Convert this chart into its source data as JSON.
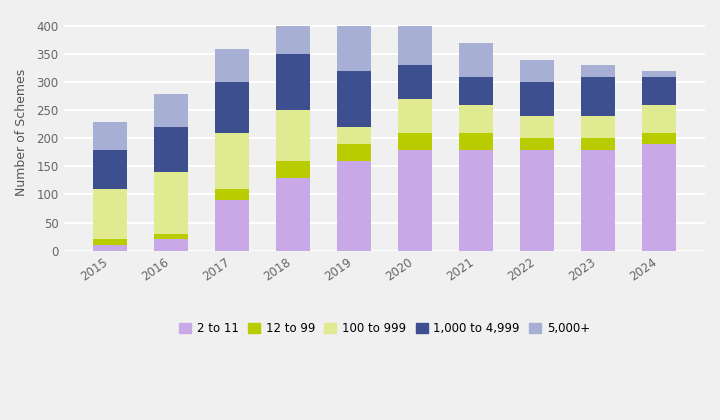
{
  "years": [
    "2015",
    "2016",
    "2017",
    "2018",
    "2019",
    "2020",
    "2021",
    "2022",
    "2023",
    "2024"
  ],
  "series": {
    "2 to 11": [
      10,
      20,
      90,
      130,
      160,
      180,
      180,
      180,
      180,
      190
    ],
    "12 to 99": [
      10,
      10,
      20,
      30,
      30,
      30,
      30,
      20,
      20,
      20
    ],
    "100 to 999": [
      90,
      110,
      100,
      90,
      30,
      60,
      50,
      40,
      40,
      50
    ],
    "1,000 to 4,999": [
      70,
      80,
      90,
      100,
      100,
      60,
      50,
      60,
      70,
      50
    ],
    "5,000+": [
      50,
      60,
      60,
      50,
      80,
      70,
      60,
      40,
      20,
      10
    ]
  },
  "colors": {
    "2 to 11": "#c9a8e8",
    "12 to 99": "#b8cc00",
    "100 to 999": "#e0ea90",
    "1,000 to 4,999": "#3d4f8f",
    "5,000+": "#a8afd4"
  },
  "ylabel": "Number of Schemes",
  "ylim": [
    0,
    420
  ],
  "yticks": [
    0,
    50,
    100,
    150,
    200,
    250,
    300,
    350,
    400
  ],
  "background_color": "#f0f0f0",
  "grid_color": "#ffffff",
  "bar_width": 0.55,
  "figsize": [
    7.2,
    4.2
  ],
  "dpi": 100
}
